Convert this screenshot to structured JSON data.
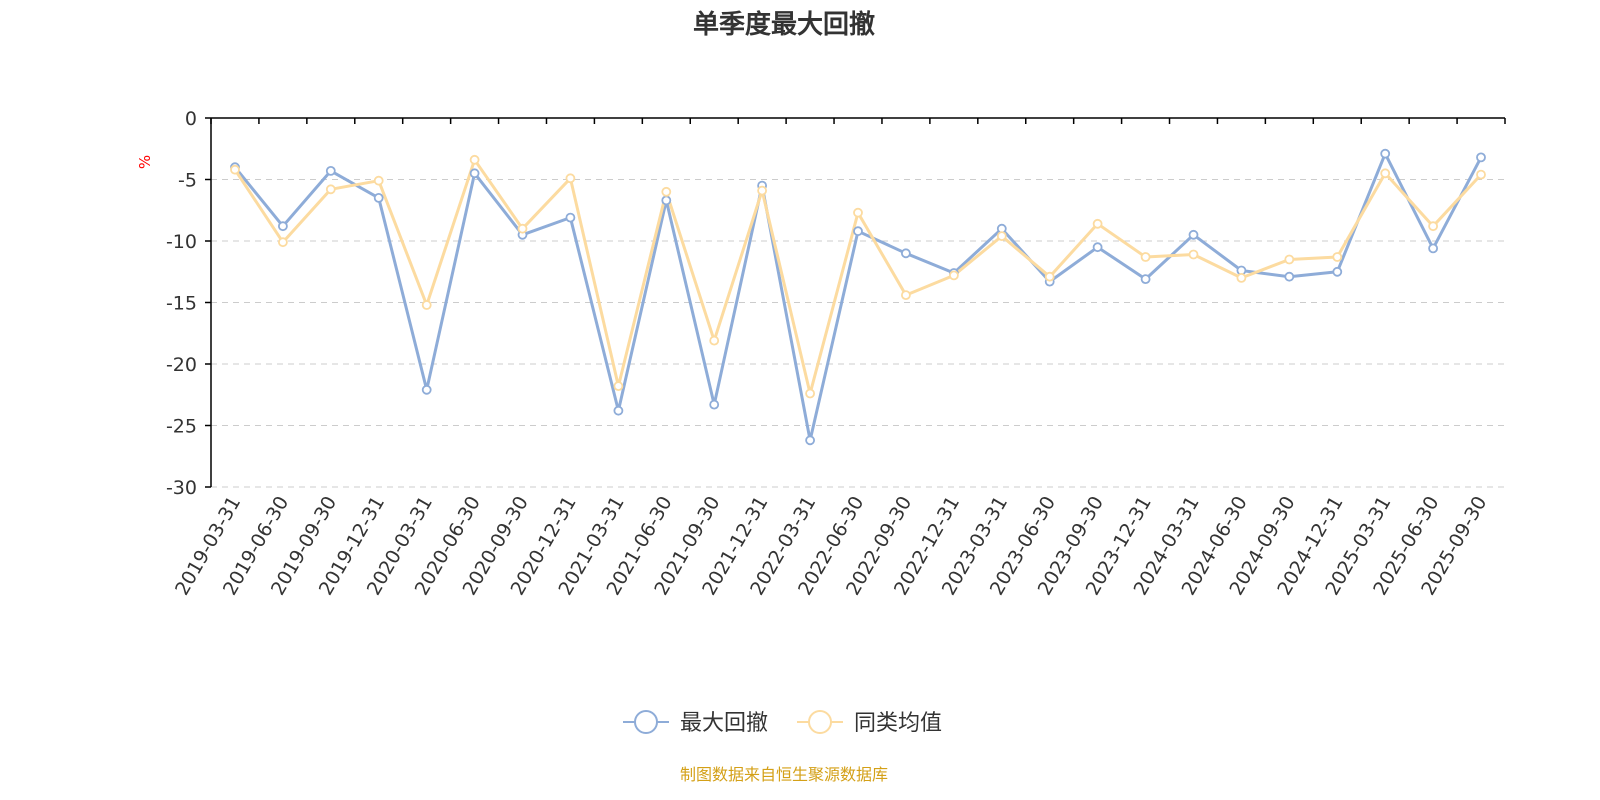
{
  "chart_data": {
    "type": "line",
    "title": "单季度最大回撤",
    "unit": "%",
    "source": "制图数据来自恒生聚源数据库",
    "categories": [
      "2019-03-31",
      "2019-06-30",
      "2019-09-30",
      "2019-12-31",
      "2020-03-31",
      "2020-06-30",
      "2020-09-30",
      "2020-12-31",
      "2021-03-31",
      "2021-06-30",
      "2021-09-30",
      "2021-12-31",
      "2022-03-31",
      "2022-06-30",
      "2022-09-30",
      "2022-12-31",
      "2023-03-31",
      "2023-06-30",
      "2023-09-30",
      "2023-12-31",
      "2024-03-31",
      "2024-06-30",
      "2024-09-30",
      "2024-12-31",
      "2025-03-31",
      "2025-06-30",
      "2025-09-30"
    ],
    "ylim": [
      -30,
      0
    ],
    "yticks": [
      "0",
      "-5",
      "-10",
      "-15",
      "-20",
      "-25",
      "-30"
    ],
    "grid": true,
    "legend_position": "bottom",
    "series": [
      {
        "name": "最大回撤",
        "color": "#8eacd8",
        "values": [
          -4.0,
          -8.8,
          -4.3,
          -6.5,
          -22.1,
          -4.5,
          -9.5,
          -8.1,
          -23.8,
          -6.7,
          -23.3,
          -5.5,
          -26.2,
          -9.2,
          -11.0,
          -12.6,
          -9.0,
          -13.3,
          -10.5,
          -13.1,
          -9.5,
          -12.4,
          -12.9,
          -12.5,
          -2.9,
          -10.6,
          -3.2
        ]
      },
      {
        "name": "同类均值",
        "color": "#fcdba0",
        "values": [
          -4.2,
          -10.1,
          -5.8,
          -5.1,
          -15.2,
          -3.4,
          -9.0,
          -4.9,
          -21.8,
          -6.0,
          -18.1,
          -5.9,
          -22.4,
          -7.7,
          -14.4,
          -12.8,
          -9.6,
          -12.9,
          -8.6,
          -11.3,
          -11.1,
          -13.0,
          -11.5,
          -11.3,
          -4.5,
          -8.8,
          -4.6
        ]
      }
    ]
  }
}
